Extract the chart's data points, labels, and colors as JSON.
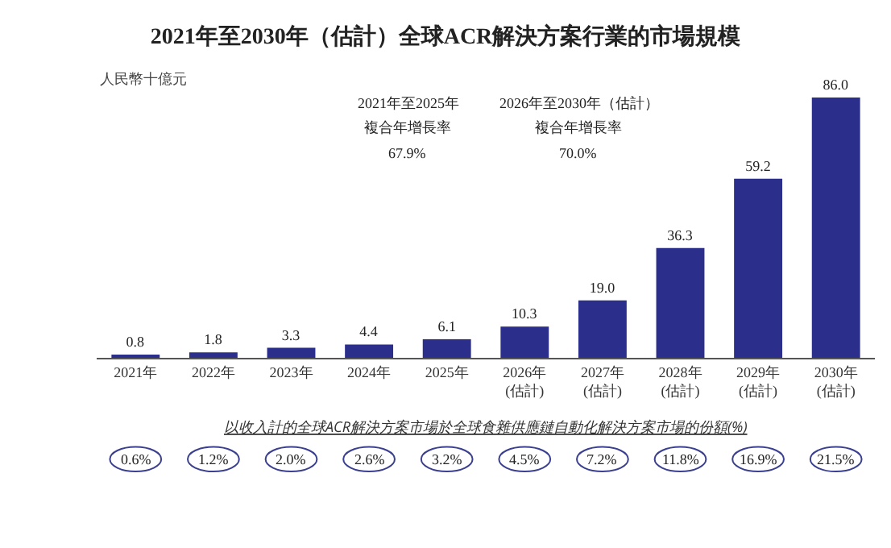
{
  "chart_data": {
    "type": "bar",
    "title": "2021年至2030年（估計）全球ACR解決方案行業的市場規模",
    "ylabel": "人民幣十億元",
    "categories": [
      "2021年",
      "2022年",
      "2023年",
      "2024年",
      "2025年",
      "2026年\n(估計)",
      "2027年\n(估計)",
      "2028年\n(估計)",
      "2029年\n(估計)",
      "2030年\n(估計)"
    ],
    "values": [
      0.8,
      1.8,
      3.3,
      4.4,
      6.1,
      10.3,
      19.0,
      36.3,
      59.2,
      86.0
    ],
    "value_labels": [
      "0.8",
      "1.8",
      "3.3",
      "4.4",
      "6.1",
      "10.3",
      "19.0",
      "36.3",
      "59.2",
      "86.0"
    ],
    "color": "#2b2e8a",
    "annotations": [
      "2021年至2025年",
      "複合年增長率",
      "67.9%",
      "2026年至2030年（估計）",
      "複合年增長率",
      "70.0%",
      "以收入計的全球ACR解決方案市場於全球食雜供應鏈自動化解決方案市場的份額(%)",
      "0.6%",
      "1.2%",
      "2.0%",
      "2.6%",
      "3.2%",
      "4.5%",
      "7.2%",
      "11.8%",
      "16.9%",
      "21.5%"
    ]
  }
}
